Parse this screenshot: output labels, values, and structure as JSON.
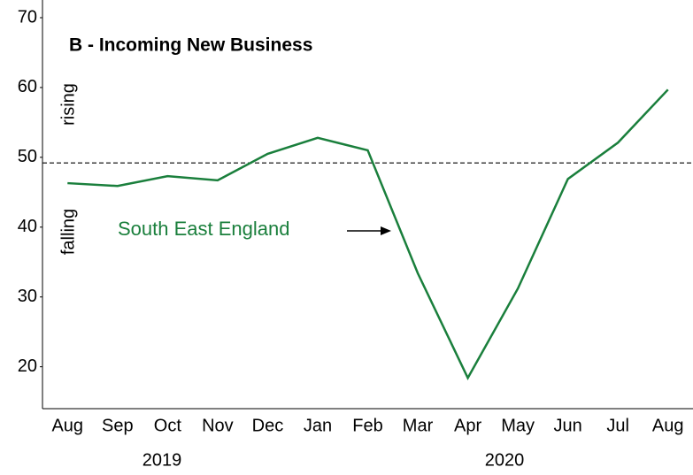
{
  "chart_data": {
    "type": "line",
    "title": "B - Incoming New Business",
    "categories": [
      "Aug",
      "Sep",
      "Oct",
      "Nov",
      "Dec",
      "Jan",
      "Feb",
      "Mar",
      "Apr",
      "May",
      "Jun",
      "Jul",
      "Aug"
    ],
    "years": [
      "2019",
      "2020"
    ],
    "series": [
      {
        "name": "South East England",
        "color": "#1a7f3c",
        "values": [
          46.3,
          45.9,
          47.3,
          46.7,
          50.5,
          52.8,
          51.0,
          33.4,
          18.4,
          31.2,
          46.9,
          52.1,
          59.7
        ]
      }
    ],
    "reference": 49.2,
    "upper_label": "rising",
    "lower_label": "falling",
    "ylim": [
      14,
      70
    ],
    "yticks": [
      20,
      30,
      40,
      50,
      60,
      70
    ]
  }
}
